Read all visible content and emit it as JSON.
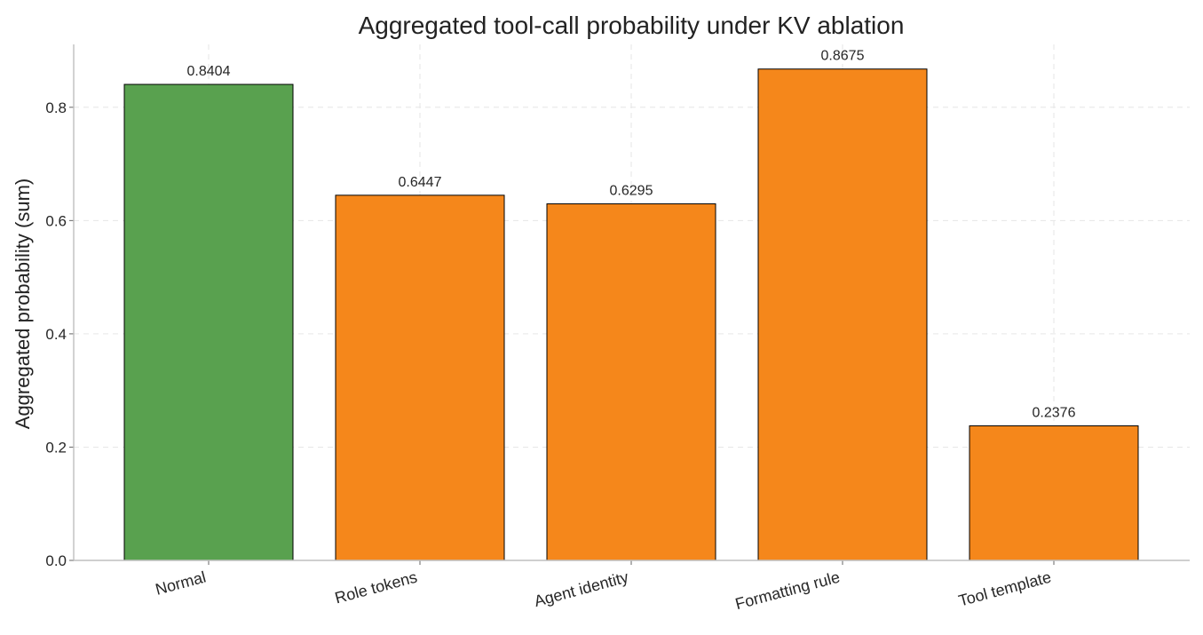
{
  "chart_data": {
    "type": "bar",
    "title": "Aggregated tool-call probability under KV ablation",
    "xlabel": "",
    "ylabel": "Aggregated probability (sum)",
    "categories": [
      "Normal",
      "Role tokens",
      "Agent identity",
      "Formatting rule",
      "Tool template"
    ],
    "values": [
      0.8404,
      0.6447,
      0.6295,
      0.8675,
      0.2376
    ],
    "value_labels": [
      "0.8404",
      "0.6447",
      "0.6295",
      "0.8675",
      "0.2376"
    ],
    "bar_colors": [
      "#59a14f",
      "#f5871b",
      "#f5871b",
      "#f5871b",
      "#f5871b"
    ],
    "yticks": [
      0.0,
      0.2,
      0.4,
      0.6,
      0.8
    ],
    "ytick_labels": [
      "0.0",
      "0.2",
      "0.4",
      "0.6",
      "0.8"
    ],
    "ylim": [
      0,
      0.911
    ],
    "grid": true,
    "legend": false
  }
}
